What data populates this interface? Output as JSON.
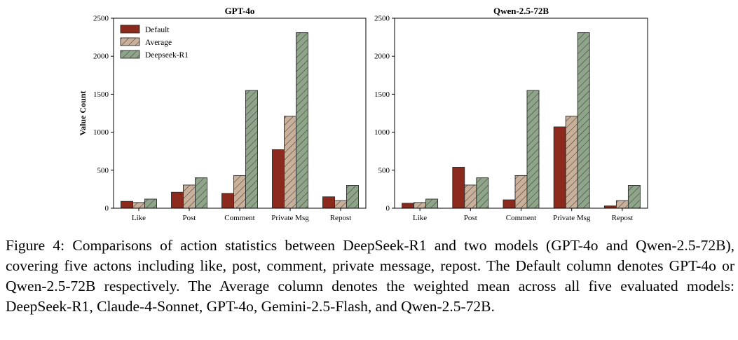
{
  "chart_data": [
    {
      "type": "bar",
      "title": "GPT-4o",
      "xlabel": "",
      "ylabel": "Value Count",
      "ylim": [
        0,
        2500
      ],
      "yticks": [
        0,
        500,
        1000,
        1500,
        2000,
        2500
      ],
      "categories": [
        "Like",
        "Post",
        "Comment",
        "Private Msg",
        "Repost"
      ],
      "legend_position": "top-left",
      "series": [
        {
          "name": "Default",
          "color": "#8b2a1c",
          "pattern": "none",
          "values": [
            90,
            210,
            195,
            770,
            150
          ]
        },
        {
          "name": "Average",
          "color": "#c9b09a",
          "pattern": "hatch",
          "values": [
            75,
            305,
            430,
            1210,
            100
          ]
        },
        {
          "name": "Deepseek-R1",
          "color": "#8fa58a",
          "pattern": "hatch",
          "values": [
            120,
            400,
            1550,
            2310,
            300
          ]
        }
      ]
    },
    {
      "type": "bar",
      "title": "Qwen-2.5-72B",
      "xlabel": "",
      "ylabel": "",
      "ylim": [
        0,
        2500
      ],
      "yticks": [
        0,
        500,
        1000,
        1500,
        2000,
        2500
      ],
      "categories": [
        "Like",
        "Post",
        "Comment",
        "Private Msg",
        "Repost"
      ],
      "legend_position": "none",
      "series": [
        {
          "name": "Default",
          "color": "#8b2a1c",
          "pattern": "none",
          "values": [
            65,
            540,
            110,
            1070,
            30
          ]
        },
        {
          "name": "Average",
          "color": "#c9b09a",
          "pattern": "hatch",
          "values": [
            75,
            305,
            430,
            1210,
            100
          ]
        },
        {
          "name": "Deepseek-R1",
          "color": "#8fa58a",
          "pattern": "hatch",
          "values": [
            120,
            400,
            1550,
            2310,
            300
          ]
        }
      ]
    }
  ],
  "caption": "Figure 4: Comparisons of action statistics between DeepSeek-R1 and two models (GPT-4o and Qwen-2.5-72B), covering five actons including like, post, comment, private message, repost. The Default column denotes GPT-4o or Qwen-2.5-72B respectively. The Average column denotes the weighted mean across all five evaluated models: DeepSeek-R1, Claude-4-Sonnet, GPT-4o, Gemini-2.5-Flash, and Qwen-2.5-72B."
}
